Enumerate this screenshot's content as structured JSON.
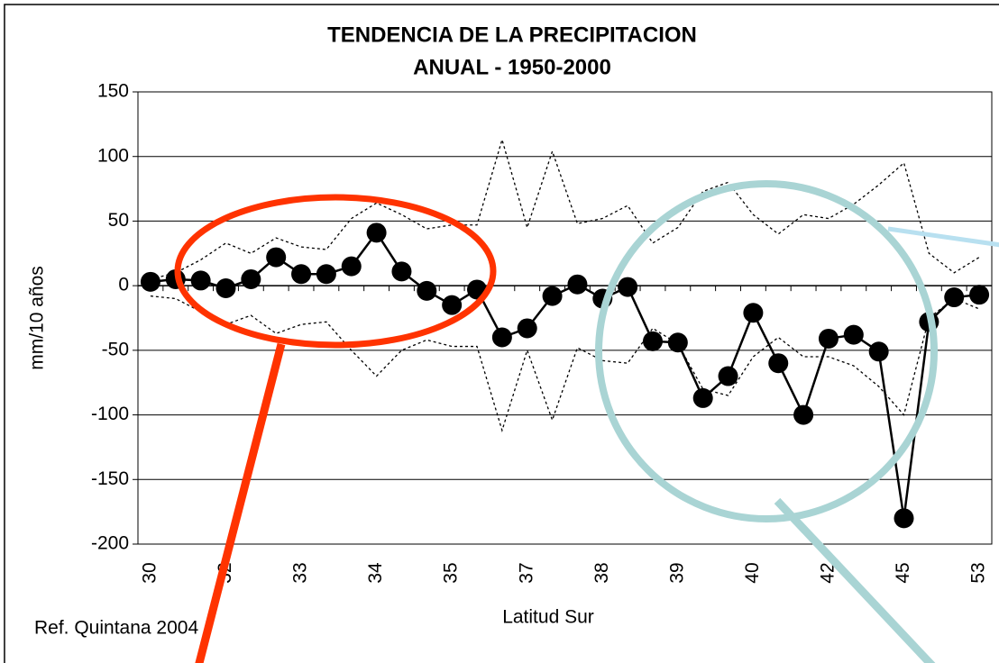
{
  "chart_data": {
    "type": "line",
    "title": [
      "TENDENCIA DE LA PRECIPITACION",
      "ANUAL - 1950-2000"
    ],
    "x_label": "Latitud Sur",
    "y_label": "mm/10 años",
    "annotation": "Ref.  Quintana 2004",
    "categories": [
      "30",
      null,
      null,
      "32",
      null,
      null,
      "33",
      null,
      null,
      "34",
      null,
      null,
      "35",
      null,
      null,
      "37",
      null,
      null,
      "38",
      null,
      null,
      "39",
      null,
      null,
      "40",
      null,
      null,
      "42",
      null,
      null,
      "45",
      null,
      null,
      "53"
    ],
    "series": [
      {
        "color": "#000000",
        "style": "solid-markers",
        "values": [
          3,
          5,
          4,
          -2,
          5,
          22,
          9,
          9,
          15,
          41,
          11,
          -4,
          -15,
          -3,
          -40,
          -33,
          -8,
          1,
          -10,
          -1,
          -43,
          -44,
          -87,
          -70,
          -21,
          -60,
          -100,
          -41,
          -38,
          -51,
          -180,
          -28,
          -9,
          -7
        ]
      },
      {
        "color": "#000000",
        "style": "dotted",
        "values": [
          5,
          10,
          20,
          33,
          25,
          37,
          30,
          28,
          52,
          64,
          55,
          44,
          47,
          47,
          113,
          45,
          104,
          48,
          52,
          62,
          33,
          45,
          73,
          80,
          55,
          40,
          55,
          52,
          63,
          78,
          95,
          25,
          10,
          22
        ]
      },
      {
        "color": "#000000",
        "style": "dotted",
        "values": [
          -8,
          -10,
          -20,
          -30,
          -23,
          -37,
          -30,
          -28,
          -50,
          -70,
          -50,
          -42,
          -47,
          -47,
          -112,
          -50,
          -104,
          -48,
          -58,
          -60,
          -33,
          -45,
          -80,
          -85,
          -55,
          -40,
          -55,
          -55,
          -62,
          -78,
          -100,
          -25,
          -10,
          -18
        ]
      }
    ],
    "ylim": [
      -200,
      150
    ],
    "yticks": [
      -200,
      -150,
      -100,
      -50,
      0,
      50,
      100,
      150
    ],
    "grid": true
  }
}
